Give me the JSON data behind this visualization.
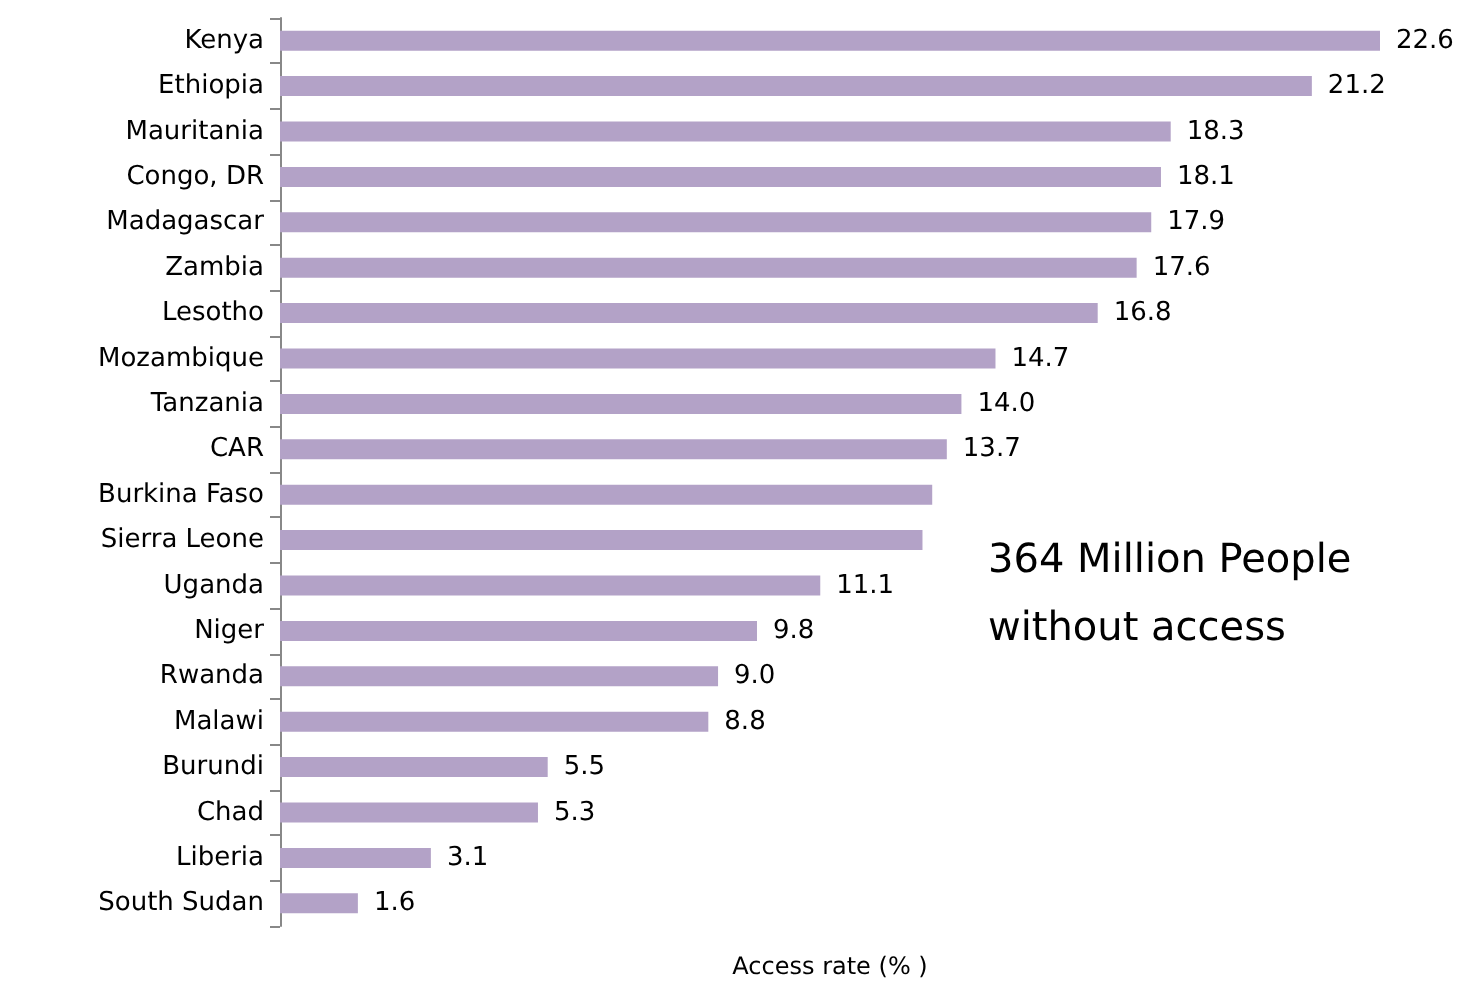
{
  "chart_data": {
    "type": "bar",
    "orientation": "horizontal",
    "xlabel": "Access rate (% )",
    "categories": [
      "Kenya",
      "Ethiopia",
      "Mauritania",
      "Congo, DR",
      "Madagascar",
      "Zambia",
      "Lesotho",
      "Mozambique",
      "Tanzania",
      "CAR",
      "Burkina Faso",
      "Sierra Leone",
      "Uganda",
      "Niger",
      "Rwanda",
      "Malawi",
      "Burundi",
      "Chad",
      "Liberia",
      "South Sudan"
    ],
    "values": [
      22.6,
      21.2,
      18.3,
      18.1,
      17.9,
      17.6,
      16.8,
      14.7,
      14.0,
      13.7,
      13.4,
      13.2,
      11.1,
      9.8,
      9.0,
      8.8,
      5.5,
      5.3,
      3.1,
      1.6
    ],
    "value_labels": [
      "22.6",
      "21.2",
      "18.3",
      "18.1",
      "17.9",
      "17.6",
      "16.8",
      "14.7",
      "14.0",
      "13.7",
      null,
      null,
      "11.1",
      "9.8",
      "9.0",
      "8.8",
      "5.5",
      "5.3",
      "3.1",
      "1.6"
    ],
    "color": "#b3a2c7",
    "annotations": [
      "364 Million People without access"
    ]
  }
}
